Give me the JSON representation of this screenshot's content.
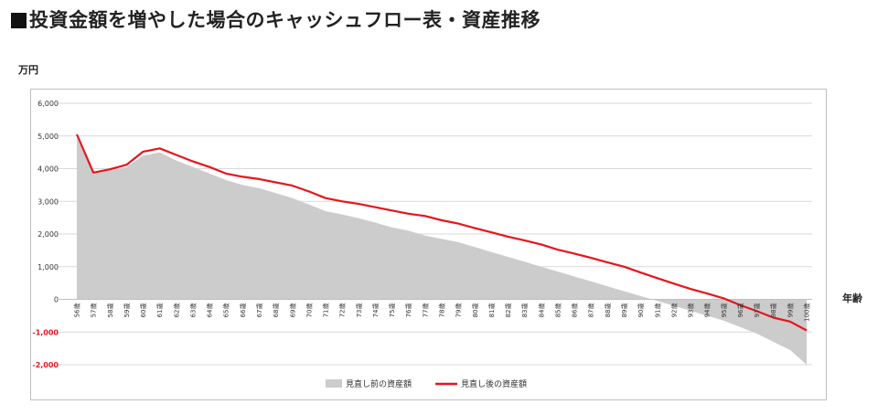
{
  "title": "投資金額を増やした場合のキャッシュフロー表・資産推移",
  "chart_data": {
    "type": "area",
    "unit_label": "万円",
    "xlabel": "年齢",
    "ylim": [
      -2000,
      6000
    ],
    "yticks": [
      -2000,
      -1000,
      0,
      1000,
      2000,
      3000,
      4000,
      5000,
      6000
    ],
    "ytick_labels": [
      "-2,000",
      "-1,000",
      "0",
      "1,000",
      "2,000",
      "3,000",
      "4,000",
      "5,000",
      "6,000"
    ],
    "grid": true,
    "legend_position": "bottom",
    "categories": [
      "56歳",
      "57歳",
      "58歳",
      "59歳",
      "60歳",
      "61歳",
      "62歳",
      "63歳",
      "64歳",
      "65歳",
      "66歳",
      "67歳",
      "68歳",
      "69歳",
      "70歳",
      "71歳",
      "72歳",
      "73歳",
      "74歳",
      "75歳",
      "76歳",
      "77歳",
      "78歳",
      "79歳",
      "80歳",
      "81歳",
      "82歳",
      "83歳",
      "84歳",
      "85歳",
      "86歳",
      "87歳",
      "88歳",
      "89歳",
      "90歳",
      "91歳",
      "92歳",
      "93歳",
      "94歳",
      "95歳",
      "96歳",
      "97歳",
      "98歳",
      "99歳",
      "100歳"
    ],
    "series": [
      {
        "name": "見直し前の資産額",
        "kind": "area",
        "color": "#cccccc",
        "values": [
          4950,
          3850,
          3950,
          4050,
          4400,
          4500,
          4250,
          4050,
          3850,
          3650,
          3500,
          3400,
          3250,
          3100,
          2900,
          2700,
          2600,
          2480,
          2350,
          2200,
          2100,
          1950,
          1850,
          1750,
          1600,
          1450,
          1300,
          1150,
          1000,
          850,
          700,
          550,
          400,
          250,
          100,
          -50,
          -200,
          -350,
          -500,
          -650,
          -850,
          -1050,
          -1300,
          -1550,
          -2000
        ]
      },
      {
        "name": "見直し後の資産額",
        "kind": "line",
        "color": "#e8141c",
        "values": [
          5050,
          3880,
          3980,
          4120,
          4520,
          4620,
          4420,
          4220,
          4050,
          3850,
          3750,
          3680,
          3580,
          3480,
          3300,
          3100,
          3000,
          2920,
          2820,
          2720,
          2620,
          2550,
          2420,
          2320,
          2180,
          2050,
          1920,
          1800,
          1680,
          1520,
          1400,
          1270,
          1130,
          1000,
          820,
          650,
          480,
          320,
          180,
          30,
          -180,
          -360,
          -560,
          -680,
          -950
        ]
      }
    ]
  }
}
